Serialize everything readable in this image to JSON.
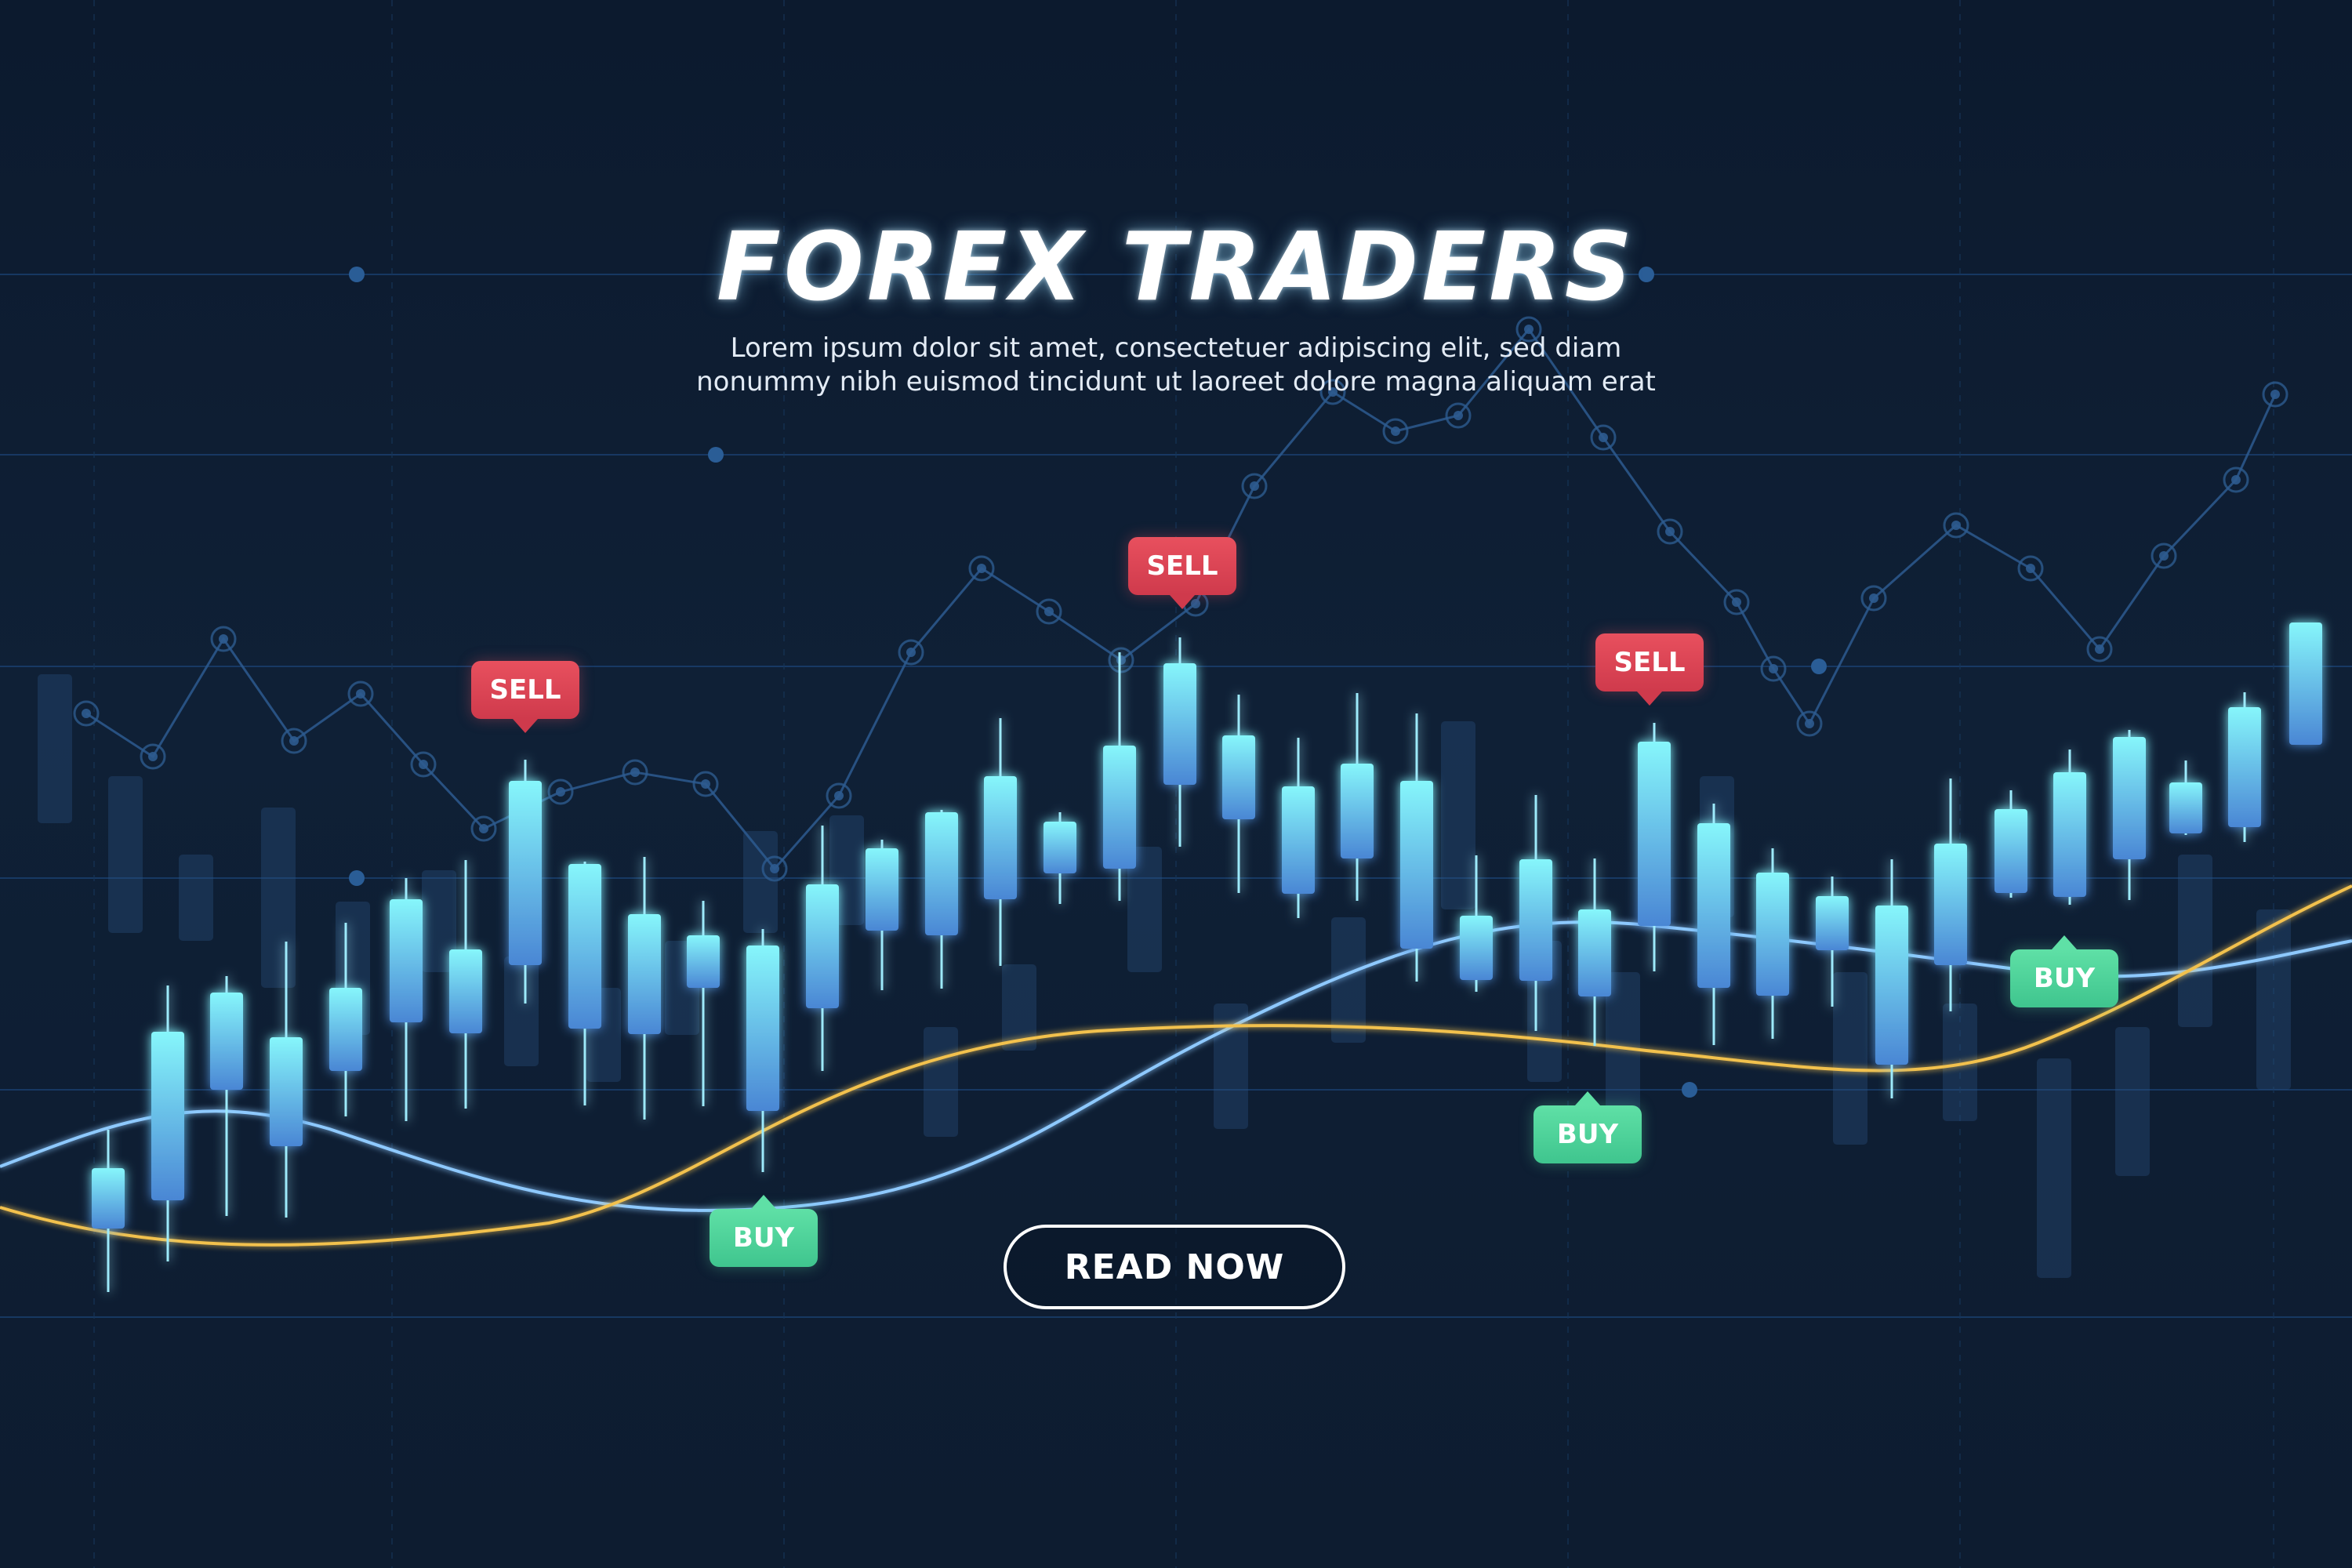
{
  "banner": {
    "title": "FOREX TRADERS",
    "subtitle_line1": "Lorem ipsum dolor sit amet, consectetuer  adipiscing elit, sed diam",
    "subtitle_line2": "nonummy nibh euismod  tincidunt ut laoreet dolore magna aliquam erat",
    "cta_label": "READ NOW"
  },
  "signals": {
    "sell_1": "SELL",
    "sell_2": "SELL",
    "sell_3": "SELL",
    "buy_1": "BUY",
    "buy_2": "BUY",
    "buy_3": "BUY"
  },
  "colors": {
    "background": "#0f1e33",
    "candle": "#7df1fa",
    "candle_low": "#4f8fd8",
    "sell": "#e8505e",
    "buy": "#5fe0a6",
    "trend_blue": "#8ec9ff",
    "trend_gold": "#f2c14e"
  },
  "icons": {
    "sell_marker": "sell-tag-icon",
    "buy_marker": "buy-tag-icon"
  }
}
